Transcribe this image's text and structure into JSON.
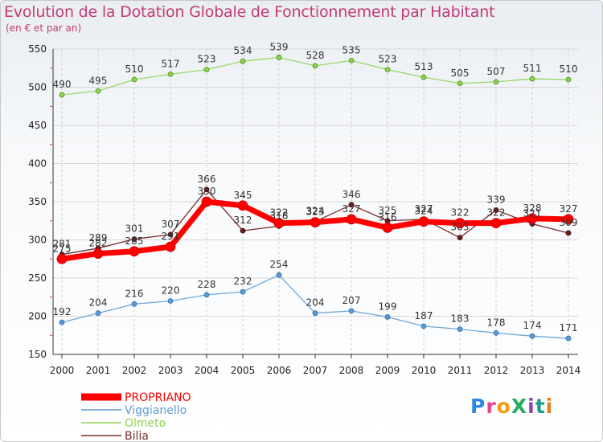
{
  "chart_data": {
    "type": "line",
    "title": "Evolution de la Dotation Globale de Fonctionnement par Habitant",
    "subtitle": "(en € et par an)",
    "xlabel": "",
    "ylabel": "",
    "x": [
      "2000",
      "2001",
      "2002",
      "2003",
      "2004",
      "2005",
      "2006",
      "2007",
      "2008",
      "2009",
      "2010",
      "2011",
      "2012",
      "2013",
      "2014"
    ],
    "ylim": [
      150,
      550
    ],
    "yticks": [
      150,
      200,
      250,
      300,
      350,
      400,
      450,
      500,
      550
    ],
    "grid": true,
    "legend_position": "bottom-left",
    "series": [
      {
        "name": "PROPRIANO",
        "color": "#ff0000",
        "values": [
          275,
          282,
          285,
          291,
          350,
          345,
          322,
          323,
          327,
          316,
          324,
          322,
          322,
          328,
          327
        ]
      },
      {
        "name": "Viggianello",
        "color": "#5b9bd5",
        "values": [
          192,
          204,
          216,
          220,
          228,
          232,
          254,
          204,
          207,
          199,
          187,
          183,
          178,
          174,
          171
        ]
      },
      {
        "name": "Olmeto",
        "color": "#8fd14f",
        "values": [
          490,
          495,
          510,
          517,
          523,
          534,
          539,
          528,
          535,
          523,
          513,
          505,
          507,
          511,
          510
        ]
      },
      {
        "name": "Bilia",
        "color": "#7a2a2a",
        "values": [
          281,
          289,
          301,
          307,
          366,
          312,
          318,
          324,
          346,
          325,
          327,
          303,
          339,
          321,
          309
        ]
      }
    ]
  },
  "logo": {
    "text": "ProXiti"
  }
}
